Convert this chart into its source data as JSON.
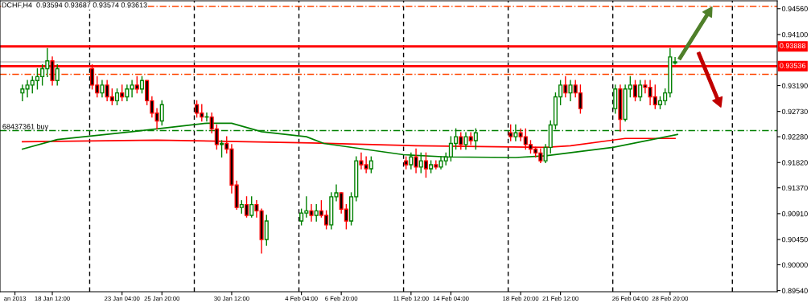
{
  "chart_data": {
    "type": "candlestick",
    "title": "DCHF,H4  0.93594 0.93687 0.93574 0.93613",
    "x": [
      "2013-01-16T12:00",
      "2013-01-16T20:00",
      "2013-01-17T04:00",
      "2013-01-17T12:00",
      "2013-01-17T20:00",
      "2013-01-18T04:00",
      "2013-01-18T12:00",
      "2013-01-18T20:00",
      "2013-01-21T04:00",
      "2013-01-21T12:00",
      "2013-01-21T20:00",
      "2013-01-22T04:00",
      "2013-01-22T12:00",
      "2013-01-22T20:00",
      "2013-01-23T04:00",
      "2013-01-23T12:00",
      "2013-01-23T20:00",
      "2013-01-24T04:00",
      "2013-01-24T12:00",
      "2013-01-24T20:00",
      "2013-01-25T04:00",
      "2013-01-25T12:00",
      "2013-01-25T20:00",
      "2013-01-28T04:00",
      "2013-01-28T12:00",
      "2013-01-28T20:00",
      "2013-01-29T04:00",
      "2013-01-29T12:00",
      "2013-01-29T20:00",
      "2013-01-30T04:00",
      "2013-01-30T12:00",
      "2013-01-30T20:00",
      "2013-01-31T04:00",
      "2013-01-31T12:00",
      "2013-01-31T20:00",
      "2013-02-01T04:00",
      "2013-02-01T12:00",
      "2013-02-01T20:00",
      "2013-02-04T04:00",
      "2013-02-04T12:00",
      "2013-02-04T20:00",
      "2013-02-05T04:00",
      "2013-02-05T12:00",
      "2013-02-05T20:00",
      "2013-02-06T04:00",
      "2013-02-06T12:00",
      "2013-02-06T20:00",
      "2013-02-07T04:00",
      "2013-02-07T12:00",
      "2013-02-07T20:00",
      "2013-02-08T04:00",
      "2013-02-08T12:00",
      "2013-02-08T20:00",
      "2013-02-11T04:00",
      "2013-02-11T12:00",
      "2013-02-11T20:00",
      "2013-02-12T04:00",
      "2013-02-12T12:00",
      "2013-02-12T20:00",
      "2013-02-13T04:00",
      "2013-02-13T12:00",
      "2013-02-13T20:00",
      "2013-02-14T04:00",
      "2013-02-14T12:00",
      "2013-02-14T20:00",
      "2013-02-15T04:00",
      "2013-02-15T12:00",
      "2013-02-15T20:00",
      "2013-02-18T04:00",
      "2013-02-18T12:00",
      "2013-02-18T20:00",
      "2013-02-19T04:00",
      "2013-02-19T12:00",
      "2013-02-19T20:00",
      "2013-02-20T04:00",
      "2013-02-20T12:00",
      "2013-02-20T20:00",
      "2013-02-21T04:00",
      "2013-02-21T12:00",
      "2013-02-21T20:00",
      "2013-02-22T04:00",
      "2013-02-22T12:00",
      "2013-02-22T20:00",
      "2013-02-25T04:00",
      "2013-02-25T12:00",
      "2013-02-25T20:00",
      "2013-02-26T04:00",
      "2013-02-26T12:00",
      "2013-02-26T20:00",
      "2013-02-27T04:00",
      "2013-02-27T12:00",
      "2013-02-27T20:00",
      "2013-02-28T04:00",
      "2013-02-28T12:00",
      "2013-02-28T20:00",
      "2013-03-01T04:00"
    ],
    "ohlc": [
      [
        0.9306,
        0.932,
        0.9292,
        0.9313
      ],
      [
        0.9313,
        0.9328,
        0.9299,
        0.932
      ],
      [
        0.932,
        0.9335,
        0.9306,
        0.9328
      ],
      [
        0.9328,
        0.9349,
        0.9313,
        0.9335
      ],
      [
        0.9335,
        0.9356,
        0.932,
        0.9349
      ],
      [
        0.9349,
        0.9385,
        0.9335,
        0.9363
      ],
      [
        0.9363,
        0.937,
        0.932,
        0.9328
      ],
      [
        0.9328,
        0.9356,
        0.932,
        0.9349
      ],
      [
        0.9349,
        0.9356,
        0.9313,
        0.932
      ],
      [
        0.932,
        0.9335,
        0.9299,
        0.9306
      ],
      [
        0.9306,
        0.9328,
        0.9299,
        0.932
      ],
      [
        0.932,
        0.9328,
        0.9292,
        0.9299
      ],
      [
        0.9299,
        0.9313,
        0.9285,
        0.9292
      ],
      [
        0.9292,
        0.9313,
        0.9285,
        0.9306
      ],
      [
        0.9306,
        0.932,
        0.9292,
        0.9299
      ],
      [
        0.9299,
        0.932,
        0.9292,
        0.9313
      ],
      [
        0.9313,
        0.9328,
        0.9299,
        0.932
      ],
      [
        0.932,
        0.9335,
        0.9306,
        0.9313
      ],
      [
        0.9313,
        0.9335,
        0.9306,
        0.9328
      ],
      [
        0.9328,
        0.9328,
        0.9285,
        0.9292
      ],
      [
        0.9292,
        0.9299,
        0.9263,
        0.927
      ],
      [
        0.927,
        0.9278,
        0.9242,
        0.9256
      ],
      [
        0.9256,
        0.9292,
        0.9249,
        0.9285
      ],
      [
        0.9285,
        0.9292,
        0.9263,
        0.927
      ],
      [
        0.927,
        0.9285,
        0.9256,
        0.9263
      ],
      [
        0.9263,
        0.927,
        0.9256,
        0.9263
      ],
      [
        0.9263,
        0.927,
        0.9235,
        0.9242
      ],
      [
        0.9242,
        0.9249,
        0.9206,
        0.9214
      ],
      [
        0.9214,
        0.9221,
        0.9192,
        0.9216
      ],
      [
        0.9216,
        0.9228,
        0.9199,
        0.9206
      ],
      [
        0.9206,
        0.9214,
        0.9128,
        0.9142
      ],
      [
        0.9142,
        0.9149,
        0.9099,
        0.9102
      ],
      [
        0.9102,
        0.9114,
        0.9092,
        0.9107
      ],
      [
        0.9107,
        0.9121,
        0.9085,
        0.9088
      ],
      [
        0.9088,
        0.9121,
        0.9085,
        0.9107
      ],
      [
        0.9107,
        0.9114,
        0.9085,
        0.9096
      ],
      [
        0.9096,
        0.9099,
        0.9021,
        0.9045
      ],
      [
        0.9045,
        0.9088,
        0.9035,
        0.9078
      ],
      [
        0.9078,
        0.9099,
        0.9071,
        0.9092
      ],
      [
        0.9092,
        0.9121,
        0.9085,
        0.9096
      ],
      [
        0.9096,
        0.9107,
        0.9078,
        0.9088
      ],
      [
        0.9088,
        0.9107,
        0.9078,
        0.9096
      ],
      [
        0.9096,
        0.9114,
        0.9085,
        0.9088
      ],
      [
        0.9088,
        0.9096,
        0.9064,
        0.9071
      ],
      [
        0.9071,
        0.9128,
        0.9064,
        0.9121
      ],
      [
        0.9121,
        0.9142,
        0.9114,
        0.9128
      ],
      [
        0.9128,
        0.9128,
        0.9092,
        0.9099
      ],
      [
        0.9099,
        0.9107,
        0.9064,
        0.9078
      ],
      [
        0.9078,
        0.9128,
        0.9071,
        0.9121
      ],
      [
        0.9121,
        0.9192,
        0.9114,
        0.9185
      ],
      [
        0.9185,
        0.9199,
        0.9171,
        0.9178
      ],
      [
        0.9178,
        0.9192,
        0.9164,
        0.9171
      ],
      [
        0.9171,
        0.9192,
        0.9164,
        0.9185
      ],
      [
        0.9185,
        0.9192,
        0.9171,
        0.9178
      ],
      [
        0.9178,
        0.9199,
        0.9171,
        0.9192
      ],
      [
        0.9192,
        0.9206,
        0.9164,
        0.9174
      ],
      [
        0.9174,
        0.9199,
        0.9164,
        0.9185
      ],
      [
        0.9185,
        0.9199,
        0.9156,
        0.9171
      ],
      [
        0.9171,
        0.9185,
        0.9164,
        0.9178
      ],
      [
        0.9178,
        0.9185,
        0.9171,
        0.9174
      ],
      [
        0.9174,
        0.9192,
        0.9171,
        0.9185
      ],
      [
        0.9185,
        0.9199,
        0.9178,
        0.9192
      ],
      [
        0.9192,
        0.9228,
        0.9185,
        0.9216
      ],
      [
        0.9216,
        0.9242,
        0.9206,
        0.9228
      ],
      [
        0.9228,
        0.9235,
        0.9206,
        0.9214
      ],
      [
        0.9214,
        0.9235,
        0.9206,
        0.9228
      ],
      [
        0.9228,
        0.9235,
        0.9214,
        0.9221
      ],
      [
        0.9221,
        0.9242,
        0.9206,
        0.9235
      ],
      [
        0.9235,
        0.9249,
        0.9221,
        0.9228
      ],
      [
        0.9228,
        0.9249,
        0.9221,
        0.9235
      ],
      [
        0.9235,
        0.9242,
        0.9221,
        0.9228
      ],
      [
        0.9228,
        0.9242,
        0.9206,
        0.9214
      ],
      [
        0.9214,
        0.9221,
        0.9199,
        0.9206
      ],
      [
        0.9206,
        0.9209,
        0.9192,
        0.9199
      ],
      [
        0.9199,
        0.9206,
        0.9182,
        0.9185
      ],
      [
        0.9185,
        0.9214,
        0.9182,
        0.9209
      ],
      [
        0.9209,
        0.9256,
        0.9199,
        0.9249
      ],
      [
        0.9249,
        0.9306,
        0.9242,
        0.9299
      ],
      [
        0.9299,
        0.9328,
        0.9285,
        0.932
      ],
      [
        0.932,
        0.9335,
        0.9299,
        0.9306
      ],
      [
        0.9306,
        0.9328,
        0.9292,
        0.932
      ],
      [
        0.932,
        0.9328,
        0.9299,
        0.9306
      ],
      [
        0.9306,
        0.932,
        0.927,
        0.9278
      ],
      [
        0.9278,
        0.932,
        0.927,
        0.9313
      ],
      [
        0.9313,
        0.932,
        0.9238,
        0.9259
      ],
      [
        0.9259,
        0.932,
        0.9256,
        0.9313
      ],
      [
        0.9313,
        0.9335,
        0.9299,
        0.932
      ],
      [
        0.932,
        0.9328,
        0.9292,
        0.9299
      ],
      [
        0.9299,
        0.9328,
        0.9292,
        0.932
      ],
      [
        0.932,
        0.9328,
        0.9306,
        0.9316
      ],
      [
        0.9316,
        0.9328,
        0.9285,
        0.9299
      ],
      [
        0.9299,
        0.932,
        0.9278,
        0.9285
      ],
      [
        0.9285,
        0.9299,
        0.9278,
        0.9292
      ],
      [
        0.9292,
        0.9313,
        0.9285,
        0.9306
      ],
      [
        0.9306,
        0.9385,
        0.9299,
        0.937
      ],
      [
        0.93594,
        0.93687,
        0.93574,
        0.93613
      ]
    ],
    "colors": [
      "#008000",
      "#008000",
      "#008000",
      "#008000",
      "#008000",
      "#008000",
      "#ff0000",
      "#008000",
      "#ff0000",
      "#ff0000",
      "#008000",
      "#ff0000",
      "#ff0000",
      "#008000",
      "#ff0000",
      "#008000",
      "#008000",
      "#ff0000",
      "#008000",
      "#ff0000",
      "#ff0000",
      "#ff0000",
      "#008000",
      "#ff0000",
      "#ff0000",
      "#008000",
      "#ff0000",
      "#ff0000",
      "#008000",
      "#ff0000",
      "#ff0000",
      "#ff0000",
      "#008000",
      "#ff0000",
      "#008000",
      "#ff0000",
      "#ff0000",
      "#008000",
      "#008000",
      "#008000",
      "#ff0000",
      "#008000",
      "#ff0000",
      "#ff0000",
      "#008000",
      "#008000",
      "#ff0000",
      "#ff0000",
      "#008000",
      "#008000",
      "#ff0000",
      "#ff0000",
      "#008000",
      "#ff0000",
      "#008000",
      "#ff0000",
      "#008000",
      "#ff0000",
      "#008000",
      "#ff0000",
      "#008000",
      "#008000",
      "#008000",
      "#008000",
      "#ff0000",
      "#008000",
      "#ff0000",
      "#008000",
      "#ff0000",
      "#008000",
      "#ff0000",
      "#ff0000",
      "#ff0000",
      "#ff0000",
      "#ff0000",
      "#008000",
      "#008000",
      "#008000",
      "#008000",
      "#ff0000",
      "#008000",
      "#ff0000",
      "#ff0000",
      "#008000",
      "#ff0000",
      "#008000",
      "#008000",
      "#ff0000",
      "#008000",
      "#ff0000",
      "#ff0000",
      "#ff0000",
      "#008000",
      "#008000",
      "#008000",
      "#008000"
    ],
    "series": [
      {
        "type": "line",
        "color": "#ff0000",
        "x": [
          "2013-01-16T12:00",
          "2013-01-25T12:00",
          "2013-02-04T20:00",
          "2013-02-11T20:00",
          "2013-02-20T12:00",
          "2013-02-22T04:00",
          "2013-02-25T20:00",
          "2013-03-01T04:00"
        ],
        "values": [
          0.9219,
          0.9222,
          0.9217,
          0.9212,
          0.9209,
          0.9212,
          0.9225,
          0.9225
        ]
      },
      {
        "type": "line",
        "color": "#008000",
        "x": [
          "2013-01-16T12:00",
          "2013-01-18T20:00",
          "2013-01-23T20:00",
          "2013-01-28T20:00",
          "2013-01-30T12:00",
          "2013-02-01T12:00",
          "2013-02-04T12:00",
          "2013-02-05T16:00",
          "2013-02-11T00:00",
          "2013-02-13T20:00",
          "2013-02-18T12:00",
          "2013-02-20T12:00",
          "2013-02-25T00:00",
          "2013-03-01T08:00"
        ],
        "values": [
          0.9206,
          0.9223,
          0.9237,
          0.9252,
          0.9252,
          0.9237,
          0.9228,
          0.9216,
          0.9196,
          0.9192,
          0.9191,
          0.9194,
          0.9209,
          0.9232
        ]
      }
    ],
    "xlim": [
      "2013-01-15T00:00",
      "2013-03-08T00:00"
    ],
    "xticks": [
      {
        "value": "2013-01-16T00:00",
        "label": "an 2013"
      },
      {
        "value": "2013-01-18T12:00",
        "label": "18 Jan 12:00"
      },
      {
        "value": "2013-01-23T04:00",
        "label": "23 Jan 04:00"
      },
      {
        "value": "2013-01-25T20:00",
        "label": "25 Jan 20:00"
      },
      {
        "value": "2013-01-30T12:00",
        "label": "30 Jan 12:00"
      },
      {
        "value": "2013-02-04T04:00",
        "label": "4 Feb 04:00"
      },
      {
        "value": "2013-02-06T20:00",
        "label": "6 Feb 20:00"
      },
      {
        "value": "2013-02-11T12:00",
        "label": "11 Feb 12:00"
      },
      {
        "value": "2013-02-14T04:00",
        "label": "14 Feb 04:00"
      },
      {
        "value": "2013-02-18T20:00",
        "label": "18 Feb 20:00"
      },
      {
        "value": "2013-02-21T12:00",
        "label": "21 Feb 12:00"
      },
      {
        "value": "2013-02-26T04:00",
        "label": "26 Feb 04:00"
      },
      {
        "value": "2013-02-28T20:00",
        "label": "28 Feb 20:00"
      }
    ],
    "ylim": [
      0.8952,
      0.947
    ],
    "yticks": [
      {
        "value": 0.9456,
        "label": "0.94560"
      },
      {
        "value": 0.941,
        "label": "0.94100"
      },
      {
        "value": 0.9319,
        "label": "0.93190"
      },
      {
        "value": 0.9273,
        "label": "0.92730"
      },
      {
        "value": 0.9228,
        "label": "0.92280"
      },
      {
        "value": 0.9182,
        "label": "0.91820"
      },
      {
        "value": 0.9137,
        "label": "0.91370"
      },
      {
        "value": 0.9091,
        "label": "0.90910"
      },
      {
        "value": 0.9045,
        "label": "0.90450"
      },
      {
        "value": 0.9,
        "label": "0.90000"
      },
      {
        "value": 0.8954,
        "label": "0.89540"
      }
    ],
    "ref_lines": [
      {
        "axis": "x",
        "value": "2013-01-21T00:00",
        "color": "#000000",
        "line_style": "dashed"
      },
      {
        "axis": "x",
        "value": "2013-01-28T00:00",
        "color": "#000000",
        "line_style": "dashed"
      },
      {
        "axis": "x",
        "value": "2013-02-04T00:00",
        "color": "#000000",
        "line_style": "dashed"
      },
      {
        "axis": "x",
        "value": "2013-02-11T00:00",
        "color": "#000000",
        "line_style": "dashed"
      },
      {
        "axis": "x",
        "value": "2013-02-18T00:00",
        "color": "#000000",
        "line_style": "dashed"
      },
      {
        "axis": "x",
        "value": "2013-02-25T00:00",
        "color": "#000000",
        "line_style": "dashed"
      },
      {
        "axis": "x",
        "value": "2013-03-05T00:00",
        "color": "#000000",
        "line_style": "dashed"
      },
      {
        "axis": "y",
        "value": 0.946,
        "color": "#ff4500",
        "line_style": "dashed"
      },
      {
        "axis": "y",
        "value": 0.93888,
        "label": "0.93888",
        "color": "#ff0000",
        "line_style": "solid"
      },
      {
        "axis": "y",
        "value": 0.93613,
        "color": "#c0c0c0",
        "line_style": "solid"
      },
      {
        "axis": "y",
        "value": 0.93536,
        "label": "0.93536",
        "color": "#ff0000",
        "line_style": "solid"
      },
      {
        "axis": "y",
        "value": 0.9339,
        "color": "#ff4500",
        "line_style": "dashed"
      },
      {
        "axis": "y",
        "value": 0.9239,
        "label": "68437361 buy",
        "color": "#008000",
        "line_style": "dashed"
      }
    ],
    "grid": false
  }
}
